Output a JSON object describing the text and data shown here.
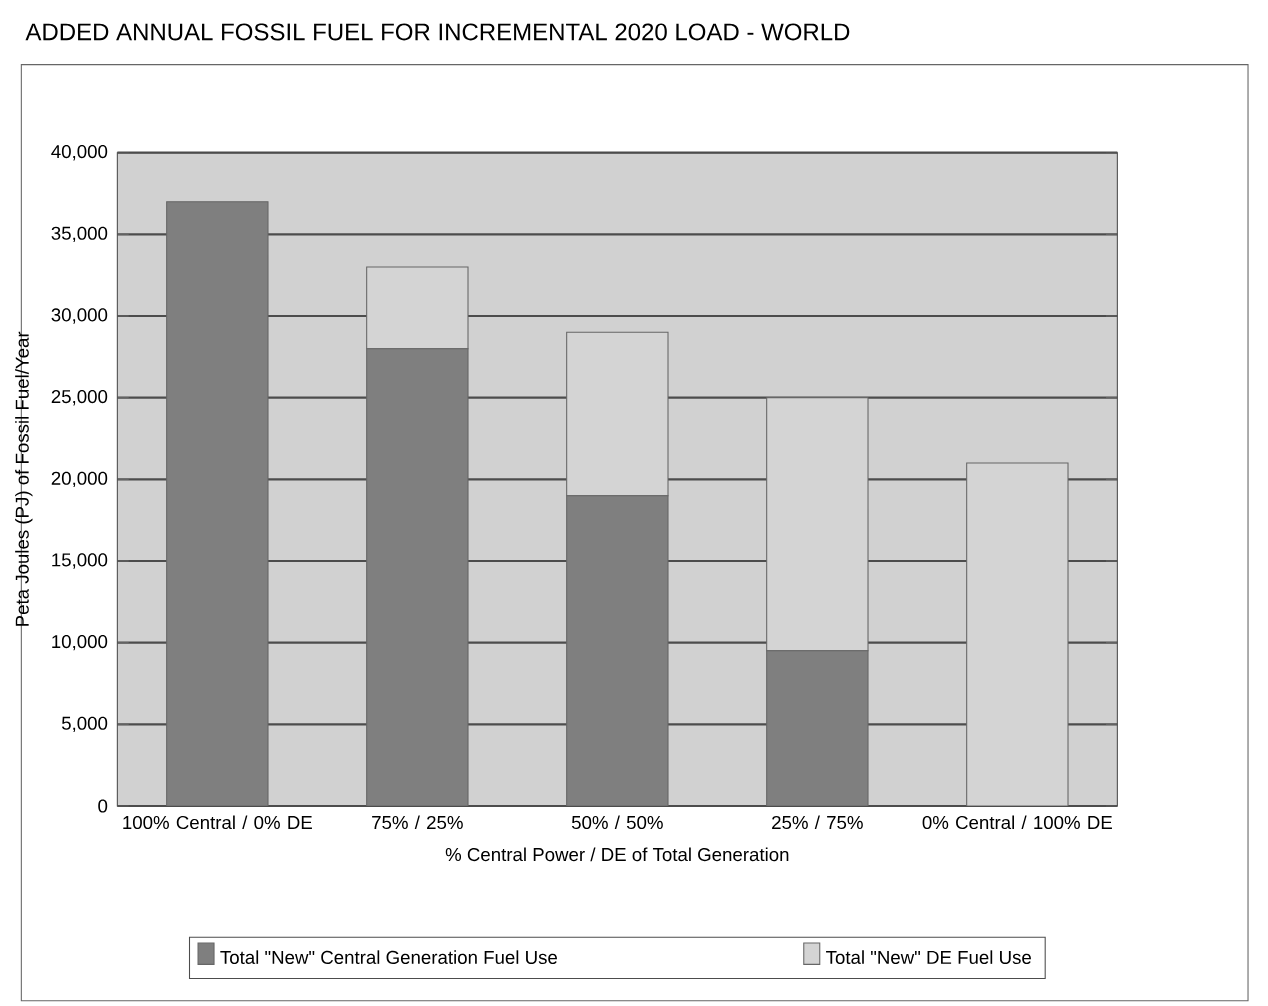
{
  "chart_data": {
    "type": "bar",
    "title": "ADDED ANNUAL FOSSIL FUEL FOR INCREMENTAL 2020 LOAD - WORLD",
    "xlabel": "% Central Power / DE of Total Generation",
    "ylabel": "Peta Joules (PJ) of Fossil Fuel/Year",
    "categories": [
      "100% Central / 0% DE",
      "75% / 25%",
      "50% / 50%",
      "25% / 75%",
      "0% Central / 100% DE"
    ],
    "stacked": true,
    "series": [
      {
        "name": "Total \"New\" Central Generation Fuel Use",
        "color": "#7f7f7f",
        "values": [
          37000,
          28000,
          19000,
          9500,
          0
        ]
      },
      {
        "name": "Total \"New\" DE Fuel Use",
        "color": "#d4d4d4",
        "values": [
          0,
          5000,
          10000,
          15500,
          21000
        ]
      }
    ],
    "ylim": [
      0,
      40000
    ],
    "yticks": [
      0,
      {
        "value": 5000,
        "label": "5,000"
      },
      {
        "value": 10000,
        "label": "10,000"
      },
      {
        "value": 15000,
        "label": "15,000"
      },
      {
        "value": 20000,
        "label": "20,000"
      },
      {
        "value": 25000,
        "label": "25,000"
      },
      {
        "value": 30000,
        "label": "30,000"
      },
      {
        "value": 35000,
        "label": "35,000"
      },
      {
        "value": 40000,
        "label": "40,000"
      }
    ],
    "grid": "y",
    "legend": "bottom"
  }
}
